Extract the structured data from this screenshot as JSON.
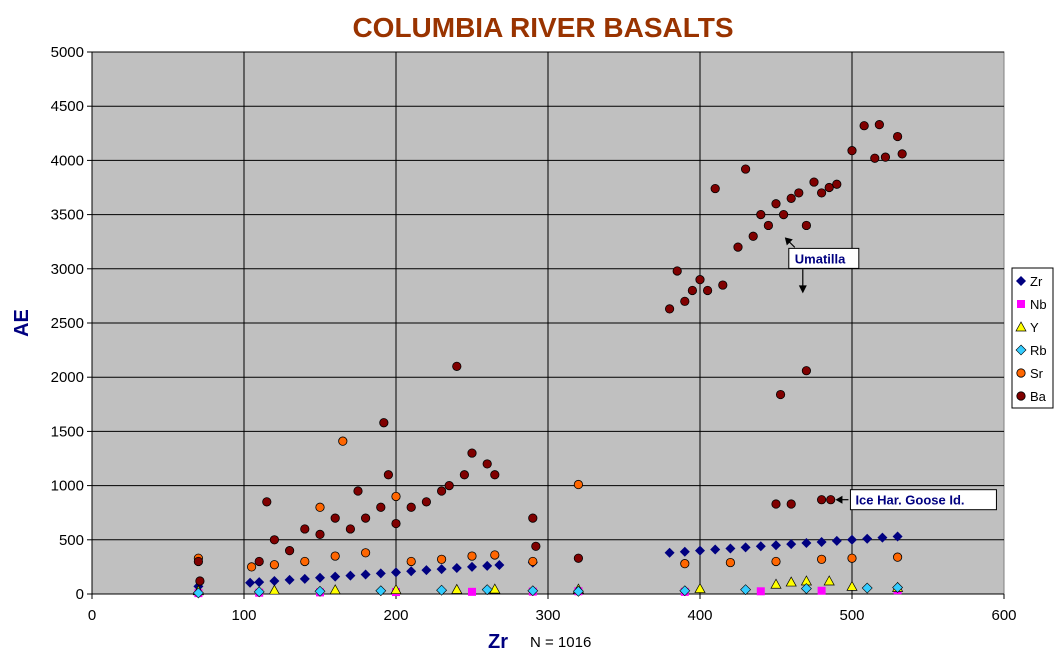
{
  "chart_data": {
    "type": "scatter",
    "title": "COLUMBIA RIVER BASALTS",
    "xlabel": "Zr",
    "ylabel": "AE",
    "note": "N = 1016",
    "xlim": [
      0,
      600
    ],
    "ylim": [
      0,
      5000
    ],
    "xticks": [
      "0",
      "100",
      "200",
      "300",
      "400",
      "500",
      "600"
    ],
    "yticks": [
      "0",
      "500",
      "1000",
      "1500",
      "2000",
      "2500",
      "3000",
      "3500",
      "4000",
      "4500",
      "5000"
    ],
    "grid": true,
    "background": "#c0c0c0",
    "legend_position": "right",
    "series": [
      {
        "name": "Zr",
        "marker": "diamond",
        "color": "#000080",
        "points": [
          [
            70,
            70
          ],
          [
            104,
            104
          ],
          [
            110,
            110
          ],
          [
            120,
            120
          ],
          [
            130,
            130
          ],
          [
            140,
            140
          ],
          [
            150,
            150
          ],
          [
            160,
            160
          ],
          [
            170,
            170
          ],
          [
            180,
            180
          ],
          [
            190,
            190
          ],
          [
            200,
            200
          ],
          [
            210,
            210
          ],
          [
            220,
            220
          ],
          [
            230,
            230
          ],
          [
            240,
            240
          ],
          [
            250,
            250
          ],
          [
            260,
            260
          ],
          [
            268,
            268
          ],
          [
            290,
            290
          ],
          [
            380,
            380
          ],
          [
            390,
            390
          ],
          [
            400,
            400
          ],
          [
            410,
            410
          ],
          [
            420,
            420
          ],
          [
            430,
            430
          ],
          [
            440,
            440
          ],
          [
            450,
            450
          ],
          [
            460,
            460
          ],
          [
            470,
            470
          ],
          [
            480,
            480
          ],
          [
            490,
            490
          ],
          [
            500,
            500
          ],
          [
            510,
            510
          ],
          [
            520,
            520
          ],
          [
            530,
            530
          ]
        ]
      },
      {
        "name": "Nb",
        "marker": "square",
        "color": "#ff00ff",
        "points": [
          [
            70,
            8
          ],
          [
            110,
            12
          ],
          [
            150,
            15
          ],
          [
            200,
            18
          ],
          [
            250,
            20
          ],
          [
            290,
            22
          ],
          [
            320,
            25
          ],
          [
            390,
            20
          ],
          [
            440,
            25
          ],
          [
            480,
            30
          ],
          [
            530,
            35
          ]
        ]
      },
      {
        "name": "Y",
        "marker": "triangle",
        "color": "#ffff00",
        "points": [
          [
            70,
            30
          ],
          [
            120,
            35
          ],
          [
            160,
            38
          ],
          [
            200,
            40
          ],
          [
            240,
            42
          ],
          [
            265,
            45
          ],
          [
            320,
            45
          ],
          [
            400,
            50
          ],
          [
            450,
            90
          ],
          [
            460,
            110
          ],
          [
            470,
            120
          ],
          [
            485,
            120
          ],
          [
            500,
            70
          ],
          [
            530,
            60
          ]
        ]
      },
      {
        "name": "Rb",
        "marker": "diamond",
        "color": "#33ccff",
        "points": [
          [
            70,
            10
          ],
          [
            110,
            20
          ],
          [
            150,
            25
          ],
          [
            190,
            30
          ],
          [
            230,
            35
          ],
          [
            260,
            40
          ],
          [
            290,
            30
          ],
          [
            320,
            25
          ],
          [
            390,
            30
          ],
          [
            430,
            40
          ],
          [
            470,
            50
          ],
          [
            510,
            55
          ],
          [
            530,
            60
          ]
        ]
      },
      {
        "name": "Sr",
        "marker": "circle",
        "color": "#ff6600",
        "points": [
          [
            70,
            330
          ],
          [
            105,
            250
          ],
          [
            120,
            270
          ],
          [
            140,
            300
          ],
          [
            150,
            800
          ],
          [
            160,
            350
          ],
          [
            165,
            1410
          ],
          [
            180,
            380
          ],
          [
            200,
            900
          ],
          [
            210,
            300
          ],
          [
            230,
            320
          ],
          [
            250,
            350
          ],
          [
            265,
            360
          ],
          [
            290,
            300
          ],
          [
            320,
            1010
          ],
          [
            390,
            280
          ],
          [
            420,
            290
          ],
          [
            450,
            300
          ],
          [
            480,
            320
          ],
          [
            500,
            330
          ],
          [
            530,
            340
          ]
        ]
      },
      {
        "name": "Ba",
        "marker": "circle",
        "color": "#800000",
        "points": [
          [
            70,
            300
          ],
          [
            71,
            120
          ],
          [
            110,
            300
          ],
          [
            115,
            850
          ],
          [
            120,
            500
          ],
          [
            130,
            400
          ],
          [
            140,
            600
          ],
          [
            150,
            550
          ],
          [
            160,
            700
          ],
          [
            170,
            600
          ],
          [
            175,
            950
          ],
          [
            180,
            700
          ],
          [
            190,
            800
          ],
          [
            192,
            1580
          ],
          [
            195,
            1100
          ],
          [
            200,
            650
          ],
          [
            210,
            800
          ],
          [
            220,
            850
          ],
          [
            230,
            950
          ],
          [
            235,
            1000
          ],
          [
            240,
            2100
          ],
          [
            245,
            1100
          ],
          [
            250,
            1300
          ],
          [
            260,
            1200
          ],
          [
            265,
            1100
          ],
          [
            290,
            700
          ],
          [
            292,
            440
          ],
          [
            320,
            330
          ],
          [
            380,
            2630
          ],
          [
            385,
            2980
          ],
          [
            390,
            2700
          ],
          [
            395,
            2800
          ],
          [
            400,
            2900
          ],
          [
            405,
            2800
          ],
          [
            410,
            3740
          ],
          [
            415,
            2850
          ],
          [
            425,
            3200
          ],
          [
            430,
            3920
          ],
          [
            435,
            3300
          ],
          [
            440,
            3500
          ],
          [
            445,
            3400
          ],
          [
            450,
            3600
          ],
          [
            455,
            3500
          ],
          [
            460,
            3650
          ],
          [
            465,
            3700
          ],
          [
            470,
            3400
          ],
          [
            475,
            3800
          ],
          [
            480,
            3700
          ],
          [
            485,
            3750
          ],
          [
            490,
            3780
          ],
          [
            453,
            1840
          ],
          [
            470,
            2060
          ],
          [
            450,
            830
          ],
          [
            460,
            830
          ],
          [
            480,
            870
          ],
          [
            486,
            870
          ],
          [
            500,
            4090
          ],
          [
            508,
            4320
          ],
          [
            515,
            4020
          ],
          [
            518,
            4330
          ],
          [
            522,
            4030
          ],
          [
            530,
            4220
          ],
          [
            533,
            4060
          ]
        ]
      }
    ],
    "annotations": [
      {
        "text": "Umatilla",
        "x": 465,
        "y": 3050
      },
      {
        "text": "Ice Har. Goose Id.",
        "x": 497,
        "y": 870
      }
    ]
  }
}
